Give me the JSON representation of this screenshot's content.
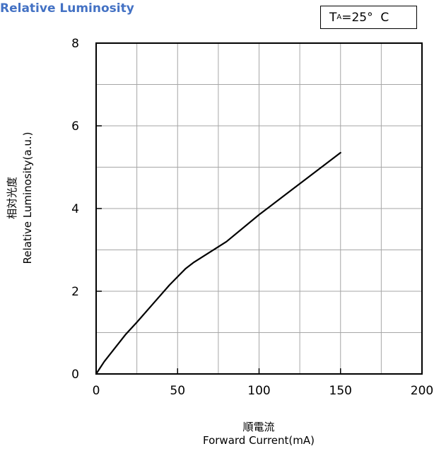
{
  "header": {
    "title": "Relative Luminosity",
    "condition_main": "T",
    "condition_sub": "A",
    "condition_rest": "=25°  C"
  },
  "axes": {
    "ylabel_jp": "相対光度",
    "ylabel_en": "Relative Luminosity(a.u.)",
    "xlabel_jp": "順電流",
    "xlabel_en": "Forward Current(mA)"
  },
  "chart_data": {
    "type": "line",
    "title": "Relative Luminosity",
    "xlabel": "Forward Current(mA)",
    "ylabel": "Relative Luminosity(a.u.)",
    "xlim": [
      0,
      200
    ],
    "ylim": [
      0,
      8
    ],
    "xticks": [
      0,
      50,
      100,
      150,
      200
    ],
    "yticks": [
      0,
      2,
      4,
      6,
      8
    ],
    "x_minor_step": 25,
    "y_minor_step": 1,
    "grid": true,
    "line_color": "#000000",
    "grid_color": "#a6a6a6",
    "series": [
      {
        "x": [
          0,
          5,
          10,
          18,
          25,
          35,
          45,
          55,
          60,
          70,
          80,
          100,
          120,
          150
        ],
        "values": [
          0,
          0.3,
          0.55,
          0.95,
          1.25,
          1.7,
          2.15,
          2.55,
          2.7,
          2.95,
          3.2,
          3.85,
          4.45,
          5.35
        ]
      }
    ]
  }
}
